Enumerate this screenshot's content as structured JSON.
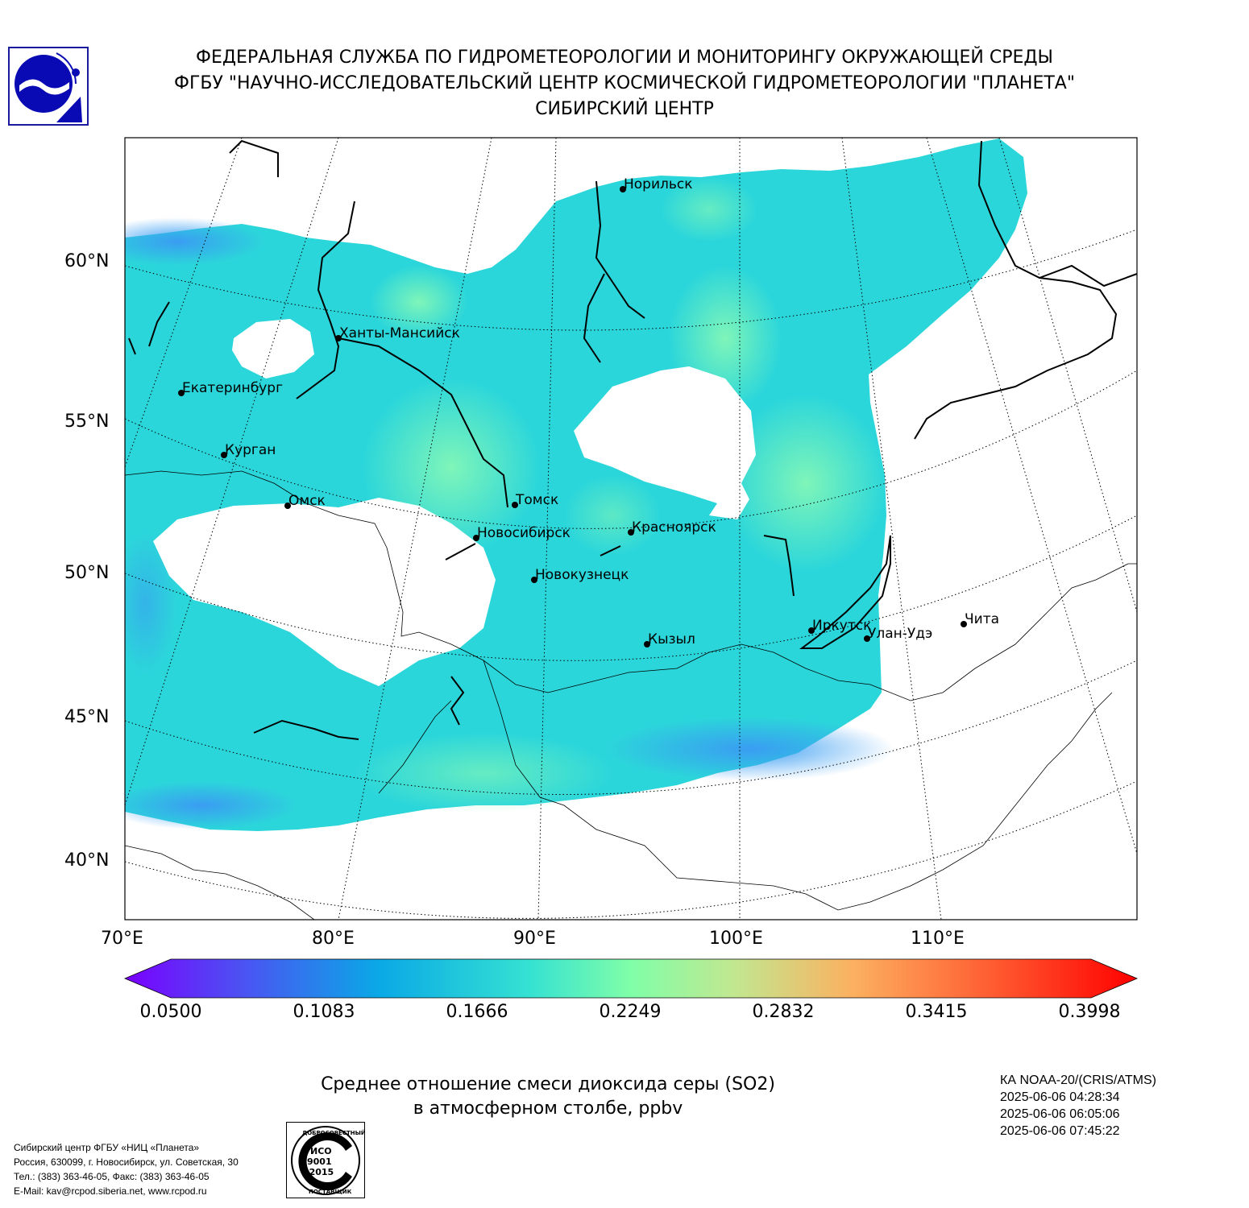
{
  "header": {
    "line1": "ФЕДЕРАЛЬНАЯ СЛУЖБА ПО ГИДРОМЕТЕОРОЛОГИИ И МОНИТОРИНГУ ОКРУЖАЮЩЕЙ СРЕДЫ",
    "line2": "ФГБУ \"НАУЧНО-ИССЛЕДОВАТЕЛЬСКИЙ ЦЕНТР КОСМИЧЕСКОЙ ГИДРОМЕТЕОРОЛОГИИ \"ПЛАНЕТА\"",
    "line3": "СИБИРСКИЙ ЦЕНТР"
  },
  "map": {
    "lat_labels": [
      "60°N",
      "55°N",
      "50°N",
      "45°N",
      "40°N"
    ],
    "lon_labels": [
      "70°E",
      "80°E",
      "90°E",
      "100°E",
      "110°E"
    ],
    "cities": [
      {
        "name": "Норильск"
      },
      {
        "name": "Ханты-Мансийск"
      },
      {
        "name": "Екатеринбург"
      },
      {
        "name": "Курган"
      },
      {
        "name": "Омск"
      },
      {
        "name": "Томск"
      },
      {
        "name": "Новосибирск"
      },
      {
        "name": "Красноярск"
      },
      {
        "name": "Новокузнецк"
      },
      {
        "name": "Кызыл"
      },
      {
        "name": "Иркутск"
      },
      {
        "name": "Улан-Удэ"
      },
      {
        "name": "Чита"
      }
    ]
  },
  "colorbar": {
    "ticks": [
      "0.0500",
      "0.1083",
      "0.1666",
      "0.2249",
      "0.2832",
      "0.3415",
      "0.3998"
    ],
    "min": 0.05,
    "max": 0.3998
  },
  "caption": {
    "line1": "Среднее отношение смеси диоксида серы (SO2)",
    "line2": "в атмосферном столбе, ppbv"
  },
  "satellite": {
    "name": "КА NOAA-20/(CRIS/ATMS)",
    "times": [
      "2025-06-06 04:28:34",
      "2025-06-06 06:05:06",
      "2025-06-06 07:45:22"
    ]
  },
  "footer": {
    "lines": [
      "Сибирский центр ФГБУ «НИЦ «Планета»",
      "Россия, 630099, г. Новосибирск, ул. Советская, 30",
      "Тел.: (383) 363-46-05, Факс: (383) 363-46-05",
      "E-Mail: kav@rcpod.siberia.net, www.rcpod.ru"
    ]
  },
  "iso_stamp": {
    "top_text": "ДОБРОСОВЕСТНЫЙ",
    "center_text": [
      "ИСО",
      "9001",
      "-2015"
    ],
    "bottom_text": "ПОСТАВЩИК"
  }
}
